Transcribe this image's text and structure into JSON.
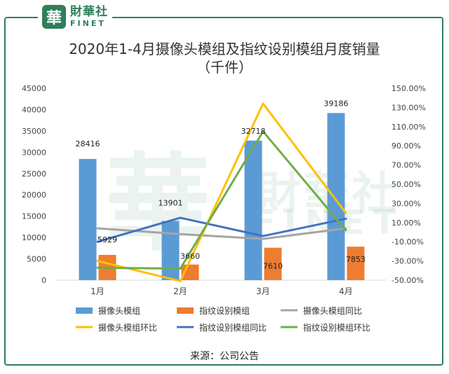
{
  "logo": {
    "mark": "華",
    "cn": "財華社",
    "en": "FINET"
  },
  "watermark": {
    "mark": "華",
    "cn": "財華社",
    "en": "FINET"
  },
  "title_line1": "2020年1-4月摄像头模组及指纹设别模组月度销量",
  "title_line2": "（千件）",
  "source": "来源：公司公告",
  "chart_data": {
    "type": "bar",
    "categories": [
      "1月",
      "2月",
      "3月",
      "4月"
    ],
    "y_left": {
      "min": 0,
      "max": 45000,
      "step": 5000,
      "ticks": [
        "0",
        "5000",
        "10000",
        "15000",
        "20000",
        "25000",
        "30000",
        "35000",
        "40000",
        "45000"
      ]
    },
    "y_right": {
      "min": -50,
      "max": 150,
      "step": 20,
      "ticks": [
        "-50.00%",
        "-30.00%",
        "-10.00%",
        "10.00%",
        "30.00%",
        "50.00%",
        "70.00%",
        "90.00%",
        "110.00%",
        "130.00%",
        "150.00%"
      ]
    },
    "bar_series": [
      {
        "name": "摄像头模组",
        "color": "#5b9bd5",
        "values": [
          28416,
          13901,
          32718,
          39186
        ],
        "labels": [
          "28416",
          "13901",
          "32718",
          "39186"
        ]
      },
      {
        "name": "指纹设别模组",
        "color": "#ed7d31",
        "values": [
          5929,
          3660,
          7610,
          7853
        ],
        "labels": [
          "5929",
          "3660",
          "7610",
          "7853"
        ]
      }
    ],
    "line_series": [
      {
        "name": "摄像头模组同比",
        "color": "#a5a5a5",
        "values": [
          4,
          -2,
          -7,
          4
        ]
      },
      {
        "name": "摄像头模组环比",
        "color": "#ffc000",
        "values": [
          -30,
          -51,
          134,
          20
        ]
      },
      {
        "name": "指纹设别模组同比",
        "color": "#4472c4",
        "values": [
          -10,
          15,
          -4,
          14
        ]
      },
      {
        "name": "指纹设别模组环比",
        "color": "#70ad47",
        "values": [
          -37,
          -38,
          105,
          2
        ]
      }
    ],
    "legend": {
      "placement": "bottom",
      "items": [
        "摄像头模组",
        "指纹设别模组",
        "摄像头模组同比",
        "摄像头模组环比",
        "指纹设别模组同比",
        "指纹设别模组环比"
      ]
    }
  }
}
